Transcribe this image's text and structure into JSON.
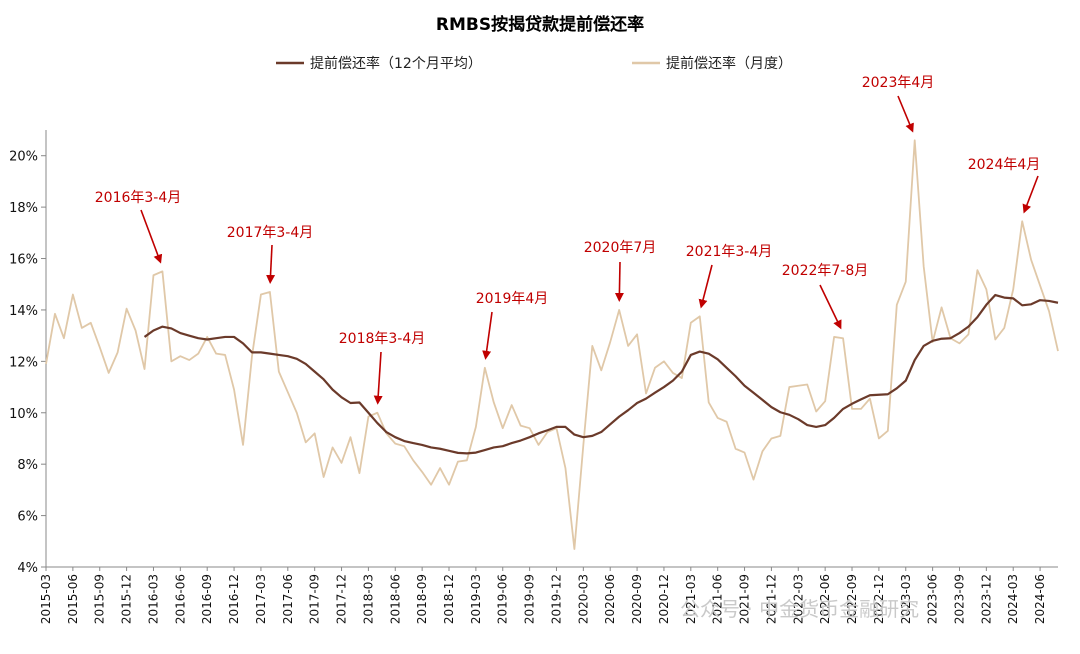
{
  "chart_data": {
    "type": "line",
    "title": "RMBS按揭贷款提前偿还率",
    "legend_position": "top-center",
    "ylim": [
      4,
      21
    ],
    "yticks": [
      "4%",
      "6%",
      "8%",
      "10%",
      "12%",
      "14%",
      "16%",
      "18%",
      "20%"
    ],
    "ytick_values": [
      4,
      6,
      8,
      10,
      12,
      14,
      16,
      18,
      20
    ],
    "x": [
      "2015-03",
      "2015-04",
      "2015-05",
      "2015-06",
      "2015-07",
      "2015-08",
      "2015-09",
      "2015-10",
      "2015-11",
      "2015-12",
      "2016-01",
      "2016-02",
      "2016-03",
      "2016-04",
      "2016-05",
      "2016-06",
      "2016-07",
      "2016-08",
      "2016-09",
      "2016-10",
      "2016-11",
      "2016-12",
      "2017-01",
      "2017-02",
      "2017-03",
      "2017-04",
      "2017-05",
      "2017-06",
      "2017-07",
      "2017-08",
      "2017-09",
      "2017-10",
      "2017-11",
      "2017-12",
      "2018-01",
      "2018-02",
      "2018-03",
      "2018-04",
      "2018-05",
      "2018-06",
      "2018-07",
      "2018-08",
      "2018-09",
      "2018-10",
      "2018-11",
      "2018-12",
      "2019-01",
      "2019-02",
      "2019-03",
      "2019-04",
      "2019-05",
      "2019-06",
      "2019-07",
      "2019-08",
      "2019-09",
      "2019-10",
      "2019-11",
      "2019-12",
      "2020-01",
      "2020-02",
      "2020-03",
      "2020-04",
      "2020-05",
      "2020-06",
      "2020-07",
      "2020-08",
      "2020-09",
      "2020-10",
      "2020-11",
      "2020-12",
      "2021-01",
      "2021-02",
      "2021-03",
      "2021-04",
      "2021-05",
      "2021-06",
      "2021-07",
      "2021-08",
      "2021-09",
      "2021-10",
      "2021-11",
      "2021-12",
      "2022-01",
      "2022-02",
      "2022-03",
      "2022-04",
      "2022-05",
      "2022-06",
      "2022-07",
      "2022-08",
      "2022-09",
      "2022-10",
      "2022-11",
      "2022-12",
      "2023-01",
      "2023-02",
      "2023-03",
      "2023-04",
      "2023-05",
      "2023-06",
      "2023-07",
      "2023-08",
      "2023-09",
      "2023-10",
      "2023-11",
      "2023-12",
      "2024-01",
      "2024-02",
      "2024-03",
      "2024-04",
      "2024-05",
      "2024-06",
      "2024-07",
      "2024-08"
    ],
    "xtick_labels": [
      "2015-03",
      "2015-06",
      "2015-09",
      "2015-12",
      "2016-03",
      "2016-06",
      "2016-09",
      "2016-12",
      "2017-03",
      "2017-06",
      "2017-09",
      "2017-12",
      "2018-03",
      "2018-06",
      "2018-09",
      "2018-12",
      "2019-03",
      "2019-06",
      "2019-09",
      "2019-12",
      "2020-03",
      "2020-06",
      "2020-09",
      "2020-12",
      "2021-03",
      "2021-06",
      "2021-09",
      "2021-12",
      "2022-03",
      "2022-06",
      "2022-09",
      "2022-12",
      "2023-03",
      "2023-06",
      "2023-09",
      "2023-12",
      "2024-03",
      "2024-06"
    ],
    "series": [
      {
        "name": "提前偿还率（12个月平均）",
        "color": "#6b3a2a",
        "values": [
          null,
          null,
          null,
          null,
          null,
          null,
          null,
          null,
          null,
          null,
          null,
          12.95,
          13.2,
          13.35,
          13.28,
          13.1,
          13.0,
          12.9,
          12.85,
          12.9,
          12.95,
          12.95,
          12.7,
          12.35,
          12.35,
          12.3,
          12.25,
          12.2,
          12.1,
          11.9,
          11.6,
          11.3,
          10.9,
          10.6,
          10.38,
          10.4,
          10.0,
          9.6,
          9.25,
          9.05,
          8.9,
          8.82,
          8.75,
          8.65,
          8.6,
          8.52,
          8.44,
          8.42,
          8.45,
          8.55,
          8.65,
          8.7,
          8.82,
          8.92,
          9.05,
          9.2,
          9.32,
          9.45,
          9.45,
          9.15,
          9.05,
          9.1,
          9.25,
          9.55,
          9.85,
          10.1,
          10.38,
          10.55,
          10.78,
          11.0,
          11.25,
          11.6,
          12.25,
          12.38,
          12.3,
          12.08,
          11.75,
          11.42,
          11.05,
          10.78,
          10.5,
          10.22,
          10.02,
          9.92,
          9.75,
          9.52,
          9.45,
          9.52,
          9.8,
          10.15,
          10.35,
          10.52,
          10.68,
          10.7,
          10.72,
          10.95,
          11.25,
          12.05,
          12.6,
          12.8,
          12.88,
          12.9,
          13.1,
          13.35,
          13.72,
          14.2,
          14.58,
          14.48,
          14.45,
          14.18,
          14.22,
          14.38,
          14.35,
          14.28
        ]
      },
      {
        "name": "提前偿还率（月度）",
        "color": "#e0c8a8",
        "values": [
          11.9,
          13.85,
          12.9,
          14.6,
          13.3,
          13.5,
          12.55,
          11.55,
          12.35,
          14.05,
          13.2,
          11.7,
          15.35,
          15.5,
          12.0,
          12.2,
          12.05,
          12.3,
          12.95,
          12.3,
          12.25,
          10.9,
          8.75,
          12.2,
          14.6,
          14.7,
          11.6,
          10.8,
          10.0,
          8.85,
          9.2,
          7.5,
          8.65,
          8.05,
          9.05,
          7.65,
          9.85,
          10.0,
          9.2,
          8.8,
          8.7,
          8.15,
          7.7,
          7.2,
          7.85,
          7.2,
          8.1,
          8.15,
          9.45,
          11.75,
          10.4,
          9.4,
          10.3,
          9.5,
          9.4,
          8.75,
          9.25,
          9.4,
          7.85,
          4.7,
          8.75,
          12.6,
          11.65,
          12.75,
          14.0,
          12.6,
          13.05,
          10.75,
          11.75,
          12.0,
          11.55,
          11.35,
          13.5,
          13.75,
          10.4,
          9.8,
          9.65,
          8.6,
          8.45,
          7.4,
          8.5,
          9.0,
          9.1,
          11.0,
          11.05,
          11.1,
          10.05,
          10.45,
          12.95,
          12.9,
          10.15,
          10.15,
          10.55,
          9.0,
          9.3,
          14.2,
          15.1,
          20.6,
          15.7,
          12.75,
          14.1,
          12.9,
          12.7,
          13.05,
          15.55,
          14.8,
          12.85,
          13.3,
          14.8,
          17.45,
          15.95,
          14.95,
          13.95,
          12.4
        ]
      }
    ],
    "annotations": [
      {
        "text": "2016年3-4月",
        "x": "2016-04",
        "y": 15.5
      },
      {
        "text": "2017年3-4月",
        "x": "2017-04",
        "y": 14.7
      },
      {
        "text": "2018年3-4月",
        "x": "2018-04",
        "y": 10.0
      },
      {
        "text": "2019年4月",
        "x": "2019-04",
        "y": 11.75
      },
      {
        "text": "2020年7月",
        "x": "2020-07",
        "y": 14.0
      },
      {
        "text": "2021年3-4月",
        "x": "2021-04",
        "y": 13.75
      },
      {
        "text": "2022年7-8月",
        "x": "2022-08",
        "y": 12.95
      },
      {
        "text": "2023年4月",
        "x": "2023-04",
        "y": 20.6
      },
      {
        "text": "2024年4月",
        "x": "2024-04",
        "y": 17.45
      }
    ],
    "annotation_color": "#c00000",
    "watermark": "公众号 · 中金货币金融研究"
  }
}
